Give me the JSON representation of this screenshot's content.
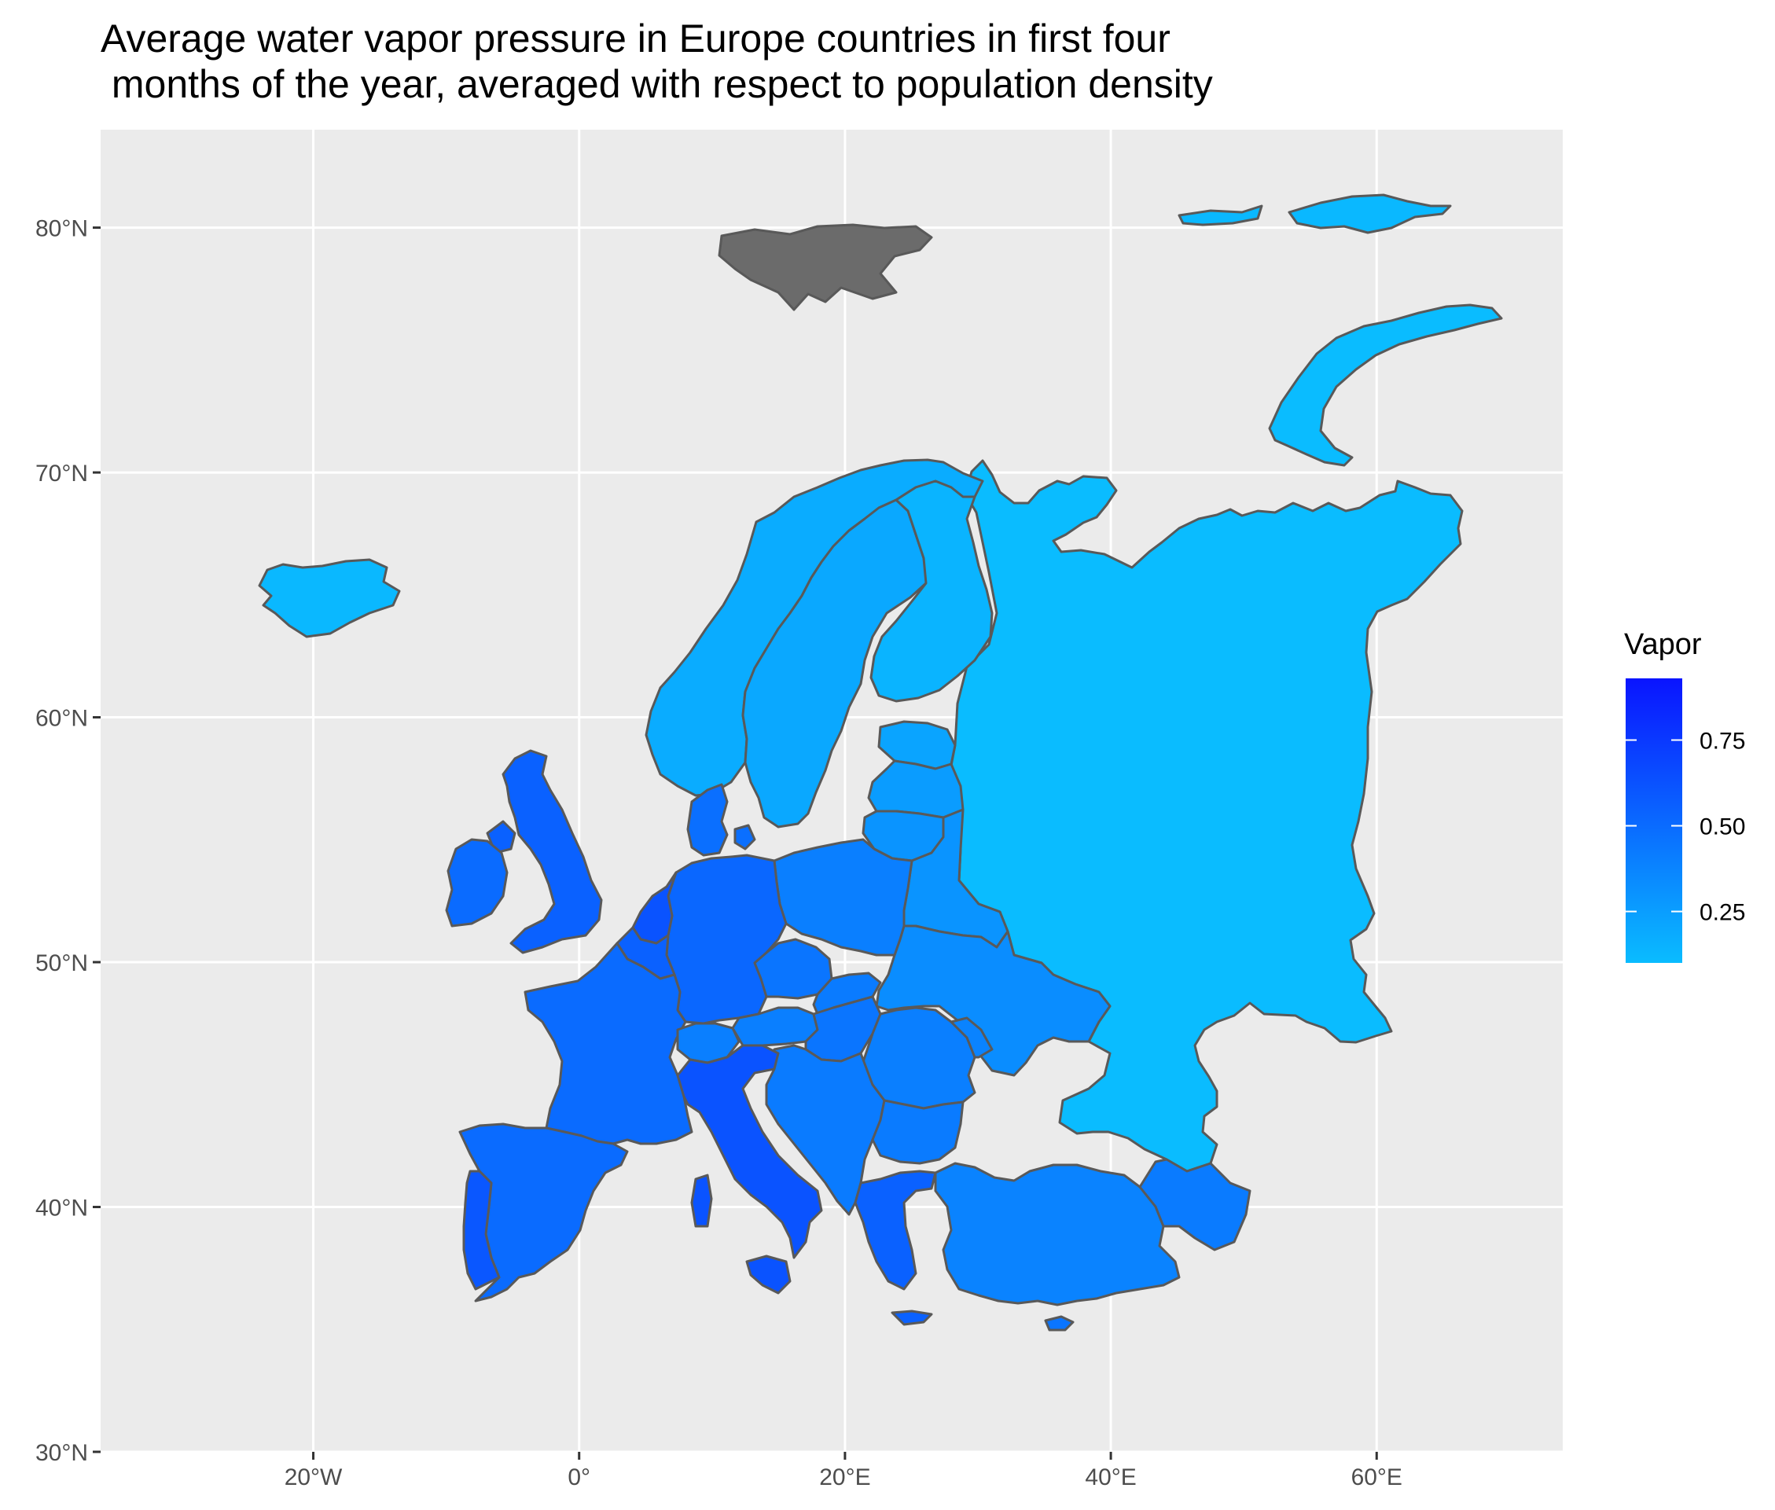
{
  "title": {
    "line1": "Average water vapor pressure in Europe countries in first four",
    "line2": " months of the year, averaged with respect to population density"
  },
  "chart_data": {
    "type": "choropleth",
    "x_axis": {
      "ticks": [
        {
          "value": -20,
          "label": "20°W"
        },
        {
          "value": 0,
          "label": "0°"
        },
        {
          "value": 20,
          "label": "20°E"
        },
        {
          "value": 40,
          "label": "40°E"
        },
        {
          "value": 60,
          "label": "60°E"
        }
      ],
      "range": [
        -36,
        74
      ]
    },
    "y_axis": {
      "ticks": [
        {
          "value": 30,
          "label": "30°N"
        },
        {
          "value": 40,
          "label": "40°N"
        },
        {
          "value": 50,
          "label": "50°N"
        },
        {
          "value": 60,
          "label": "60°N"
        },
        {
          "value": 70,
          "label": "70°N"
        },
        {
          "value": 80,
          "label": "80°N"
        }
      ],
      "range": [
        30,
        84
      ]
    },
    "grid": true,
    "legend": {
      "title": "Vapor",
      "placement": "right",
      "min": 0.1,
      "max": 0.93,
      "color_low": "#0ABCFF",
      "color_high": "#0A14FF",
      "breaks": [
        {
          "value": 0.25,
          "label": "0.25"
        },
        {
          "value": 0.5,
          "label": "0.50"
        },
        {
          "value": 0.75,
          "label": "0.75"
        }
      ]
    },
    "missing_color": "#6B6B6B",
    "regions": [
      {
        "name": "Russia",
        "value": 0.1
      },
      {
        "name": "Iceland",
        "value": 0.12
      },
      {
        "name": "Norway",
        "value": 0.18
      },
      {
        "name": "Sweden",
        "value": 0.2
      },
      {
        "name": "Finland",
        "value": 0.14
      },
      {
        "name": "Estonia",
        "value": 0.22
      },
      {
        "name": "Latvia",
        "value": 0.26
      },
      {
        "name": "Lithuania",
        "value": 0.3
      },
      {
        "name": "Belarus",
        "value": 0.3
      },
      {
        "name": "Ukraine",
        "value": 0.33
      },
      {
        "name": "Poland",
        "value": 0.4
      },
      {
        "name": "Germany",
        "value": 0.52
      },
      {
        "name": "Denmark",
        "value": 0.48
      },
      {
        "name": "Netherlands",
        "value": 0.62
      },
      {
        "name": "Belgium",
        "value": 0.55
      },
      {
        "name": "United Kingdom",
        "value": 0.55
      },
      {
        "name": "Ireland",
        "value": 0.5
      },
      {
        "name": "France",
        "value": 0.5
      },
      {
        "name": "Spain",
        "value": 0.5
      },
      {
        "name": "Portugal",
        "value": 0.6
      },
      {
        "name": "Italy",
        "value": 0.62
      },
      {
        "name": "Switzerland",
        "value": 0.4
      },
      {
        "name": "Austria",
        "value": 0.4
      },
      {
        "name": "Czechia",
        "value": 0.45
      },
      {
        "name": "Slovakia",
        "value": 0.42
      },
      {
        "name": "Hungary",
        "value": 0.45
      },
      {
        "name": "Romania",
        "value": 0.4
      },
      {
        "name": "Moldova",
        "value": 0.38
      },
      {
        "name": "Balkans",
        "value": 0.42
      },
      {
        "name": "Bulgaria",
        "value": 0.42
      },
      {
        "name": "Greece",
        "value": 0.55
      },
      {
        "name": "Turkey",
        "value": 0.38
      },
      {
        "name": "Caucasus",
        "value": 0.42
      },
      {
        "name": "Cyprus",
        "value": 0.45
      },
      {
        "name": "Svalbard",
        "value": null
      },
      {
        "name": "Franz Josef Land",
        "value": 0.12
      },
      {
        "name": "Novaya Zemlya",
        "value": 0.1
      }
    ]
  }
}
